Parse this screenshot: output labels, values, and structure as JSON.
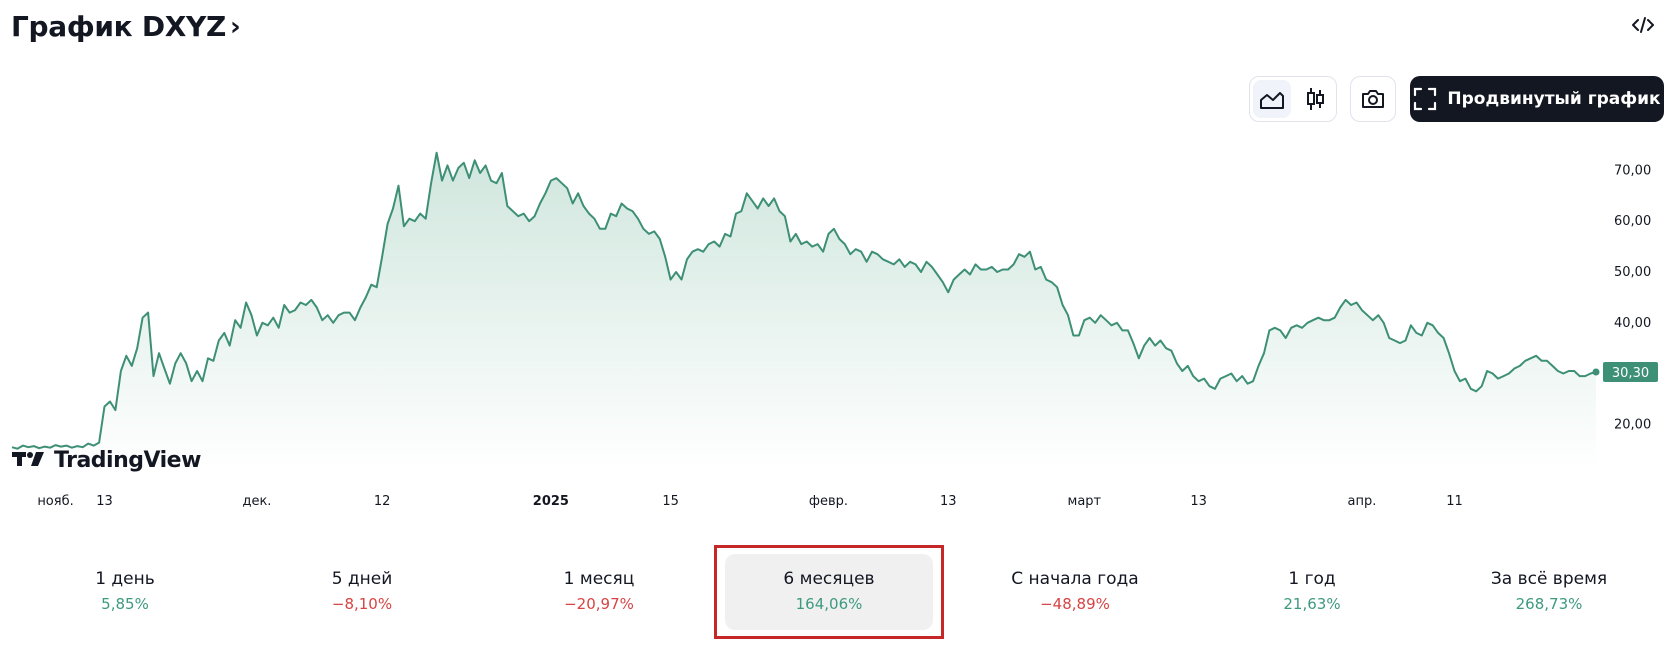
{
  "header": {
    "title": "График DXYZ",
    "chevron": "›",
    "embed_icon": "code-embed-icon"
  },
  "toolbar": {
    "area_chart_icon": "area-chart-icon",
    "candles_icon": "candlestick-icon",
    "camera_icon": "camera-icon",
    "advanced_label": "Продвинутый график",
    "advanced_icon": "fullscreen-icon"
  },
  "watermark": {
    "text": "TradingView"
  },
  "colors": {
    "line": "#3d8f76",
    "fill_top": "#cfe6dd",
    "fill_bottom": "#ffffff",
    "badge": "#3d8f76",
    "positive": "#3d9a7e",
    "negative": "#d84343",
    "highlight_border": "#c62828"
  },
  "chart_data": {
    "type": "area",
    "series": [
      {
        "values": [
          15.5,
          15.2,
          15.8,
          15.5,
          15.7,
          15.3,
          15.6,
          15.4,
          15.9,
          15.6,
          15.8,
          15.4,
          15.7,
          15.5,
          16.2,
          15.8,
          16.4,
          23.5,
          24.5,
          22.8,
          30.5,
          33.5,
          31.5,
          35.0,
          41.0,
          42.0,
          29.5,
          34.0,
          31.0,
          28.0,
          32.0,
          34.0,
          32.0,
          28.5,
          30.5,
          28.5,
          33.0,
          32.5,
          36.5,
          38.0,
          35.5,
          40.5,
          39.0,
          44.0,
          41.5,
          37.5,
          40.0,
          39.5,
          41.0,
          39.0,
          43.5,
          42.0,
          42.5,
          44.0,
          43.5,
          44.5,
          43.0,
          40.5,
          41.5,
          40.0,
          41.5,
          42.0,
          42.0,
          40.5,
          43.0,
          45.0,
          47.5,
          47.0,
          53.0,
          59.5,
          62.5,
          67.0,
          59.0,
          60.5,
          60.0,
          61.5,
          60.5,
          67.5,
          73.5,
          68.0,
          71.0,
          68.0,
          70.5,
          71.5,
          68.5,
          72.0,
          69.5,
          71.0,
          68.0,
          67.5,
          69.5,
          63.0,
          62.0,
          61.0,
          61.5,
          60.0,
          61.0,
          63.5,
          65.5,
          68.0,
          68.5,
          67.5,
          66.5,
          63.5,
          65.5,
          63.0,
          61.5,
          60.5,
          58.5,
          58.5,
          61.5,
          61.0,
          63.5,
          62.5,
          62.0,
          60.5,
          58.5,
          57.5,
          58.0,
          56.5,
          53.0,
          48.5,
          50.0,
          48.5,
          52.5,
          54.0,
          54.5,
          54.0,
          55.5,
          56.0,
          55.0,
          57.5,
          57.0,
          61.5,
          62.0,
          65.5,
          64.0,
          62.5,
          64.5,
          63.0,
          64.5,
          62.0,
          61.0,
          56.0,
          57.5,
          55.5,
          56.0,
          55.0,
          55.5,
          54.0,
          57.5,
          58.5,
          56.5,
          55.5,
          53.5,
          54.5,
          54.0,
          52.0,
          54.0,
          53.5,
          52.5,
          52.0,
          51.5,
          52.5,
          51.0,
          52.0,
          51.5,
          50.0,
          52.0,
          51.0,
          49.5,
          48.0,
          46.0,
          48.5,
          49.5,
          50.5,
          49.5,
          51.5,
          50.5,
          50.5,
          51.0,
          50.0,
          50.5,
          50.5,
          51.5,
          53.5,
          53.0,
          54.0,
          50.5,
          51.0,
          48.5,
          48.0,
          47.0,
          43.5,
          41.5,
          37.5,
          37.5,
          40.5,
          41.0,
          40.0,
          41.5,
          40.5,
          39.5,
          40.0,
          38.5,
          38.5,
          36.0,
          33.0,
          35.5,
          37.0,
          35.5,
          36.5,
          35.0,
          34.5,
          32.0,
          30.5,
          31.5,
          29.5,
          28.5,
          29.0,
          27.5,
          27.0,
          29.0,
          29.5,
          30.0,
          28.5,
          29.5,
          28.0,
          28.5,
          31.5,
          34.0,
          38.5,
          39.0,
          38.5,
          37.0,
          39.0,
          39.5,
          39.0,
          40.0,
          40.5,
          41.0,
          40.5,
          40.5,
          41.0,
          43.0,
          44.5,
          43.5,
          44.0,
          42.5,
          41.5,
          40.5,
          41.5,
          40.0,
          37.0,
          36.5,
          36.0,
          36.5,
          39.5,
          38.0,
          37.5,
          40.0,
          39.5,
          38.0,
          37.0,
          34.0,
          30.5,
          28.5,
          29.0,
          27.0,
          26.5,
          27.5,
          30.5,
          30.0,
          29.0,
          29.5,
          30.0,
          31.0,
          31.5,
          32.5,
          33.0,
          33.5,
          32.5,
          32.5,
          31.5,
          30.5,
          30.0,
          30.5,
          30.5,
          29.5,
          29.5,
          30.0,
          30.3
        ]
      }
    ],
    "current_value_label": "30,30",
    "y_ticks": [
      "20,00",
      "30,00",
      "40,00",
      "50,00",
      "60,00",
      "70,00"
    ],
    "y_tick_values": [
      20,
      30,
      40,
      50,
      60,
      70
    ],
    "ylim": [
      11,
      76
    ],
    "x_ticks": [
      {
        "label": "нояб.",
        "index": 8,
        "bold": false
      },
      {
        "label": "13",
        "index": 17,
        "bold": false
      },
      {
        "label": "дек.",
        "index": 45,
        "bold": false
      },
      {
        "label": "12",
        "index": 68,
        "bold": false
      },
      {
        "label": "2025",
        "index": 99,
        "bold": true
      },
      {
        "label": "15",
        "index": 121,
        "bold": false
      },
      {
        "label": "февр.",
        "index": 150,
        "bold": false
      },
      {
        "label": "13",
        "index": 172,
        "bold": false
      },
      {
        "label": "март",
        "index": 197,
        "bold": false
      },
      {
        "label": "13",
        "index": 218,
        "bold": false
      },
      {
        "label": "апр.",
        "index": 248,
        "bold": false
      },
      {
        "label": "11",
        "index": 265,
        "bold": false
      }
    ],
    "grid": false,
    "legend": "none"
  },
  "periods": [
    {
      "label": "1 день",
      "value": "5,85%",
      "trend": "up",
      "selected": false
    },
    {
      "label": "5 дней",
      "value": "−8,10%",
      "trend": "down",
      "selected": false
    },
    {
      "label": "1 месяц",
      "value": "−20,97%",
      "trend": "down",
      "selected": false
    },
    {
      "label": "6 месяцев",
      "value": "164,06%",
      "trend": "up",
      "selected": true
    },
    {
      "label": "С начала года",
      "value": "−48,89%",
      "trend": "down",
      "selected": false
    },
    {
      "label": "1 год",
      "value": "21,63%",
      "trend": "up",
      "selected": false
    },
    {
      "label": "За всё время",
      "value": "268,73%",
      "trend": "up",
      "selected": false
    }
  ]
}
